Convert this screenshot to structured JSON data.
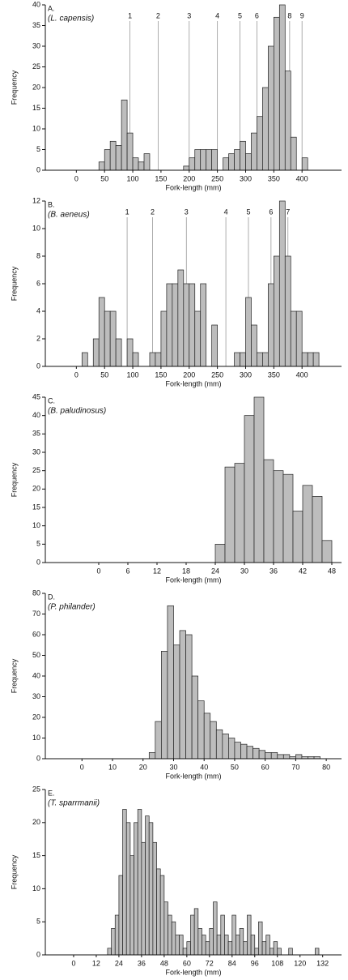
{
  "chart_data": [
    {
      "type": "histogram",
      "label": "A.",
      "title": "(L. capensis)",
      "xlabel": "Fork-length (mm)",
      "ylabel": "Frequency",
      "color": "#bdbdbd",
      "bins": [
        40,
        50,
        60,
        70,
        80,
        90,
        100,
        110,
        120,
        130,
        140,
        150,
        160,
        170,
        180,
        190,
        200,
        210,
        220,
        230,
        240,
        250,
        260,
        270,
        280,
        290,
        300,
        310,
        320,
        330,
        340,
        350,
        360,
        370,
        380,
        390,
        400,
        410
      ],
      "counts": [
        2,
        5,
        7,
        6,
        17,
        9,
        3,
        2,
        4,
        0,
        0,
        0,
        0,
        0,
        0,
        1,
        3,
        5,
        5,
        5,
        5,
        0,
        3,
        4,
        5,
        7,
        4,
        9,
        13,
        20,
        30,
        37,
        40,
        24,
        8,
        0,
        3
      ],
      "xlim": [
        -55,
        470
      ],
      "xticks": [
        0,
        50,
        100,
        150,
        200,
        250,
        300,
        350,
        400
      ],
      "ylim": [
        0,
        40
      ],
      "yticks": [
        0,
        5,
        10,
        15,
        20,
        25,
        30,
        35,
        40
      ],
      "markers": [
        {
          "value": 95,
          "label": "1"
        },
        {
          "value": 145,
          "label": "2"
        },
        {
          "value": 200,
          "label": "3"
        },
        {
          "value": 250,
          "label": "4"
        },
        {
          "value": 290,
          "label": "5"
        },
        {
          "value": 320,
          "label": "6"
        },
        {
          "value": 365,
          "label": "7"
        },
        {
          "value": 378,
          "label": "8"
        },
        {
          "value": 400,
          "label": "9"
        }
      ]
    },
    {
      "type": "histogram",
      "label": "B.",
      "title": "(B. aeneus)",
      "xlabel": "Fork-length (mm)",
      "ylabel": "Frequency",
      "color": "#bdbdbd",
      "bins": [
        10,
        20,
        30,
        40,
        50,
        60,
        70,
        80,
        90,
        100,
        110,
        120,
        130,
        140,
        150,
        160,
        170,
        180,
        190,
        200,
        210,
        220,
        230,
        240,
        250,
        260,
        270,
        280,
        290,
        300,
        310,
        320,
        330,
        340,
        350,
        360,
        370,
        380,
        390,
        400,
        410,
        420,
        430
      ],
      "counts": [
        1,
        0,
        2,
        5,
        4,
        4,
        2,
        0,
        2,
        1,
        0,
        0,
        1,
        1,
        4,
        6,
        6,
        7,
        6,
        6,
        4,
        6,
        0,
        3,
        0,
        0,
        0,
        1,
        1,
        5,
        3,
        1,
        1,
        6,
        8,
        12,
        8,
        4,
        4,
        1,
        1,
        1
      ],
      "xlim": [
        -55,
        470
      ],
      "xticks": [
        0,
        50,
        100,
        150,
        200,
        250,
        300,
        350,
        400
      ],
      "ylim": [
        0,
        12
      ],
      "yticks": [
        0,
        2,
        4,
        6,
        8,
        10,
        12
      ],
      "markers": [
        {
          "value": 90,
          "label": "1"
        },
        {
          "value": 135,
          "label": "2"
        },
        {
          "value": 195,
          "label": "3"
        },
        {
          "value": 265,
          "label": "4"
        },
        {
          "value": 305,
          "label": "5"
        },
        {
          "value": 345,
          "label": "6"
        },
        {
          "value": 375,
          "label": "7"
        }
      ]
    },
    {
      "type": "histogram",
      "label": "C.",
      "title": "(B. paludinosus)",
      "xlabel": "Fork-length (mm)",
      "ylabel": "Frequency",
      "color": "#bdbdbd",
      "bins": [
        24,
        26,
        28,
        30,
        32,
        34,
        36,
        38,
        40,
        42,
        44,
        46,
        48
      ],
      "counts": [
        5,
        26,
        27,
        40,
        45,
        28,
        25,
        24,
        14,
        21,
        18,
        6
      ],
      "xlim": [
        -11,
        50
      ],
      "xticks": [
        0,
        6,
        12,
        18,
        24,
        30,
        36,
        42,
        48
      ],
      "ylim": [
        0,
        45
      ],
      "yticks": [
        0,
        5,
        10,
        15,
        20,
        25,
        30,
        35,
        40,
        45
      ]
    },
    {
      "type": "histogram",
      "label": "D.",
      "title": "(P. philander)",
      "xlabel": "Fork-length (mm)",
      "ylabel": "Frequency",
      "color": "#bdbdbd",
      "bins": [
        22,
        24,
        26,
        28,
        30,
        32,
        34,
        36,
        38,
        40,
        42,
        44,
        46,
        48,
        50,
        52,
        54,
        56,
        58,
        60,
        62,
        64,
        66,
        68,
        70,
        72,
        74,
        76,
        78
      ],
      "counts": [
        3,
        18,
        52,
        74,
        55,
        62,
        60,
        40,
        28,
        22,
        18,
        14,
        12,
        10,
        8,
        7,
        6,
        5,
        4,
        3,
        3,
        2,
        2,
        1,
        2,
        1,
        1,
        1
      ],
      "xlim": [
        -12,
        85
      ],
      "xticks": [
        0,
        10,
        20,
        30,
        40,
        50,
        60,
        70,
        80
      ],
      "ylim": [
        0,
        80
      ],
      "yticks": [
        0,
        10,
        20,
        30,
        40,
        50,
        60,
        70,
        80
      ]
    },
    {
      "type": "histogram",
      "label": "E.",
      "title": "(T. sparrmanii)",
      "xlabel": "Fork-length (mm)",
      "ylabel": "Frequency",
      "color": "#bdbdbd",
      "bins": [
        18,
        20,
        22,
        24,
        26,
        28,
        30,
        32,
        34,
        36,
        38,
        40,
        42,
        44,
        46,
        48,
        50,
        52,
        54,
        56,
        58,
        60,
        62,
        64,
        66,
        68,
        70,
        72,
        74,
        76,
        78,
        80,
        82,
        84,
        86,
        88,
        90,
        92,
        94,
        96,
        98,
        100,
        102,
        104,
        106,
        108,
        110,
        112,
        114,
        116,
        118,
        120,
        122,
        124,
        126,
        128,
        130,
        132
      ],
      "counts": [
        1,
        4,
        6,
        12,
        22,
        20,
        15,
        20,
        22,
        17,
        21,
        20,
        17,
        13,
        12,
        8,
        6,
        5,
        3,
        3,
        1,
        2,
        6,
        7,
        4,
        3,
        2,
        4,
        8,
        3,
        6,
        3,
        2,
        6,
        3,
        4,
        2,
        6,
        3,
        1,
        5,
        2,
        3,
        1,
        2,
        1,
        0,
        0,
        1,
        0,
        0,
        0,
        0,
        0,
        0,
        1,
        0
      ],
      "xlim": [
        -15,
        142
      ],
      "xticks": [
        0,
        12,
        24,
        36,
        48,
        60,
        72,
        84,
        96,
        108,
        120,
        132
      ],
      "ylim": [
        0,
        25
      ],
      "yticks": [
        0,
        5,
        10,
        15,
        20,
        25
      ]
    }
  ]
}
